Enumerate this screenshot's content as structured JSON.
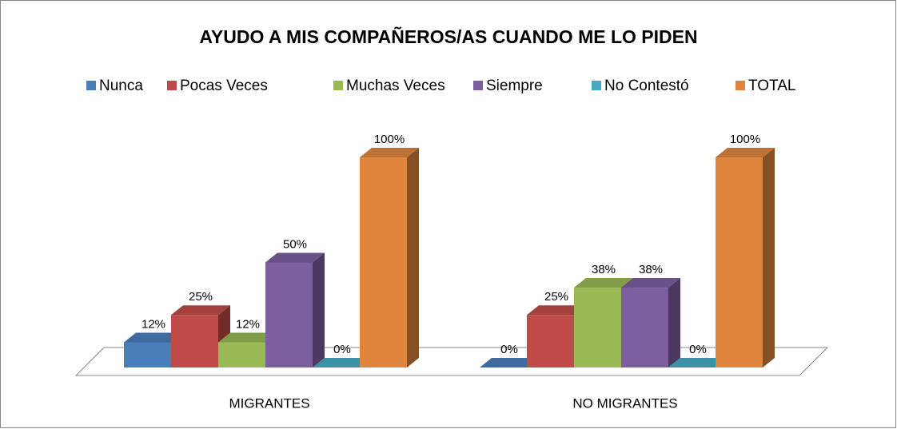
{
  "chart_data": {
    "type": "bar3d",
    "title": "AYUDO A MIS COMPAÑEROS/AS CUANDO ME LO PIDEN",
    "categories": [
      "MIGRANTES",
      "NO MIGRANTES"
    ],
    "series": [
      {
        "name": "Nunca",
        "color": "#4a7ebb",
        "values": [
          12,
          0
        ],
        "value_labels": [
          "12%",
          "0%"
        ]
      },
      {
        "name": "Pocas Veces",
        "color": "#be4b48",
        "values": [
          25,
          25
        ],
        "value_labels": [
          "25%",
          "25%"
        ]
      },
      {
        "name": "Muchas Veces",
        "color": "#98b954",
        "values": [
          12,
          38
        ],
        "value_labels": [
          "12%",
          "38%"
        ]
      },
      {
        "name": "Siempre",
        "color": "#7d5fa0",
        "values": [
          50,
          38
        ],
        "value_labels": [
          "50%",
          "38%"
        ]
      },
      {
        "name": "No Contestó",
        "color": "#46aac5",
        "values": [
          0,
          0
        ],
        "value_labels": [
          "0%",
          "0%"
        ]
      },
      {
        "name": "TOTAL",
        "color": "#e0853e",
        "values": [
          100,
          100
        ],
        "value_labels": [
          "100%",
          "100%"
        ]
      }
    ],
    "legend": "top"
  }
}
